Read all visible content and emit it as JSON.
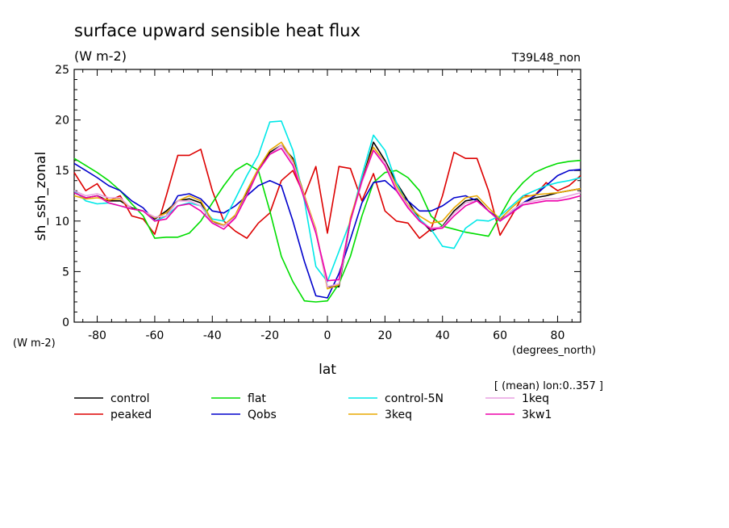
{
  "chart_data": {
    "type": "line",
    "title": "surface upward sensible heat flux",
    "units": "(W m-2)",
    "experiment": "T39L48_non",
    "ylabel": "sh_ssh_zonal",
    "y_units_label": "(W m-2)",
    "xlabel": "lat",
    "x_units_label": "(degrees_north)",
    "subtitle_note": "[ (mean) lon:0..357 ]",
    "xlim": [
      -88,
      88
    ],
    "ylim": [
      0,
      25
    ],
    "x_ticks": [
      -80,
      -60,
      -40,
      -20,
      0,
      20,
      40,
      60,
      80
    ],
    "y_ticks": [
      0,
      5,
      10,
      15,
      20,
      25
    ],
    "grid": false,
    "legend_position": "bottom",
    "x": [
      -88,
      -84,
      -80,
      -76,
      -72,
      -68,
      -64,
      -60,
      -56,
      -52,
      -48,
      -44,
      -40,
      -36,
      -32,
      -28,
      -24,
      -20,
      -16,
      -12,
      -8,
      -4,
      0,
      4,
      8,
      12,
      16,
      20,
      24,
      28,
      32,
      36,
      40,
      44,
      48,
      52,
      56,
      60,
      64,
      68,
      72,
      76,
      80,
      84,
      88
    ],
    "series": [
      {
        "name": "control",
        "color": "#000000",
        "values": [
          12.8,
          12.3,
          12.5,
          12.0,
          12.0,
          11.3,
          11.0,
          10.2,
          11.0,
          12.0,
          12.2,
          11.8,
          10.0,
          9.5,
          10.5,
          12.8,
          15.0,
          16.8,
          17.5,
          16.2,
          12.5,
          9.0,
          3.5,
          3.5,
          10.0,
          14.0,
          17.8,
          16.0,
          13.8,
          12.0,
          10.2,
          9.0,
          9.5,
          11.0,
          12.0,
          12.2,
          11.0,
          10.0,
          11.0,
          11.8,
          12.3,
          12.5,
          12.8,
          13.0,
          13.2
        ]
      },
      {
        "name": "peaked",
        "color": "#dd0000",
        "values": [
          14.8,
          13.0,
          13.7,
          12.0,
          12.5,
          10.5,
          10.2,
          8.7,
          12.5,
          16.5,
          16.5,
          17.1,
          13.0,
          10.0,
          9.0,
          8.3,
          9.8,
          10.8,
          14.0,
          15.0,
          12.5,
          15.4,
          8.8,
          15.4,
          15.2,
          12.0,
          14.7,
          11.0,
          10.0,
          9.8,
          8.3,
          9.2,
          12.5,
          16.8,
          16.2,
          16.2,
          13.0,
          8.6,
          10.5,
          12.5,
          12.5,
          13.8,
          13.0,
          13.5,
          14.5
        ]
      },
      {
        "name": "flat",
        "color": "#00dd00",
        "values": [
          16.2,
          15.5,
          14.8,
          14.0,
          13.0,
          11.7,
          10.5,
          8.3,
          8.4,
          8.4,
          8.8,
          10.0,
          11.8,
          13.5,
          15.0,
          15.7,
          15.0,
          11.0,
          6.5,
          4.0,
          2.1,
          2.0,
          2.1,
          3.8,
          6.5,
          10.5,
          13.8,
          14.8,
          15.0,
          14.3,
          13.0,
          10.5,
          9.5,
          9.2,
          8.9,
          8.7,
          8.5,
          10.5,
          12.5,
          13.8,
          14.8,
          15.3,
          15.7,
          15.9,
          16.0
        ]
      },
      {
        "name": "Qobs",
        "color": "#0000cc",
        "values": [
          15.7,
          15.0,
          14.3,
          13.5,
          13.0,
          12.0,
          11.3,
          10.0,
          10.5,
          12.5,
          12.7,
          12.2,
          11.0,
          10.8,
          11.5,
          12.5,
          13.5,
          14.0,
          13.5,
          10.0,
          6.0,
          2.6,
          2.4,
          4.8,
          8.2,
          11.8,
          13.8,
          14.0,
          13.0,
          12.0,
          11.0,
          11.0,
          11.5,
          12.3,
          12.5,
          12.0,
          11.0,
          10.2,
          10.8,
          11.8,
          12.5,
          13.5,
          14.5,
          15.0,
          15.1
        ]
      },
      {
        "name": "control-5N",
        "color": "#00e8e8",
        "values": [
          13.0,
          12.0,
          11.7,
          11.8,
          11.5,
          11.2,
          11.0,
          10.0,
          10.5,
          11.5,
          11.8,
          11.5,
          10.2,
          10.0,
          12.2,
          14.5,
          16.5,
          19.8,
          19.9,
          17.0,
          12.0,
          5.5,
          4.0,
          7.0,
          10.0,
          14.5,
          18.5,
          17.0,
          13.8,
          11.5,
          10.2,
          9.2,
          7.5,
          7.3,
          9.3,
          10.1,
          10.0,
          10.5,
          11.5,
          12.5,
          13.0,
          13.5,
          13.8,
          14.0,
          14.3
        ]
      },
      {
        "name": "3keq",
        "color": "#e8a800",
        "values": [
          12.5,
          12.2,
          12.3,
          12.1,
          12.2,
          11.2,
          11.0,
          10.3,
          10.8,
          12.0,
          12.5,
          12.0,
          10.0,
          9.6,
          10.6,
          13.0,
          15.2,
          17.0,
          17.8,
          16.0,
          12.5,
          9.2,
          3.3,
          3.7,
          10.3,
          14.0,
          17.3,
          15.8,
          13.5,
          11.6,
          10.5,
          9.8,
          10.0,
          11.3,
          12.3,
          12.5,
          11.3,
          10.2,
          11.3,
          12.3,
          12.6,
          12.7,
          12.8,
          13.0,
          13.2
        ]
      },
      {
        "name": "1keq",
        "color": "#e8a0e0",
        "values": [
          13.0,
          12.5,
          12.7,
          12.3,
          12.3,
          11.2,
          11.0,
          10.4,
          10.5,
          12.0,
          12.0,
          11.5,
          9.8,
          9.5,
          10.4,
          12.6,
          15.0,
          16.6,
          17.5,
          15.8,
          12.3,
          9.0,
          3.5,
          3.8,
          10.0,
          13.8,
          17.0,
          15.8,
          13.2,
          11.5,
          10.0,
          9.3,
          9.4,
          10.8,
          11.8,
          12.0,
          11.0,
          10.0,
          11.0,
          11.8,
          12.0,
          12.2,
          12.2,
          12.5,
          12.8
        ]
      },
      {
        "name": "3kw1",
        "color": "#ee00aa",
        "values": [
          12.8,
          12.3,
          12.5,
          11.8,
          11.5,
          11.2,
          11.0,
          10.0,
          10.2,
          11.5,
          11.7,
          11.0,
          9.8,
          9.2,
          10.3,
          12.5,
          15.0,
          16.6,
          17.2,
          15.5,
          12.2,
          8.8,
          4.1,
          4.2,
          10.0,
          14.0,
          17.0,
          15.5,
          13.0,
          11.3,
          10.0,
          9.2,
          9.3,
          10.5,
          11.5,
          12.0,
          11.0,
          10.0,
          10.8,
          11.6,
          11.8,
          12.0,
          12.0,
          12.2,
          12.5
        ]
      }
    ]
  }
}
